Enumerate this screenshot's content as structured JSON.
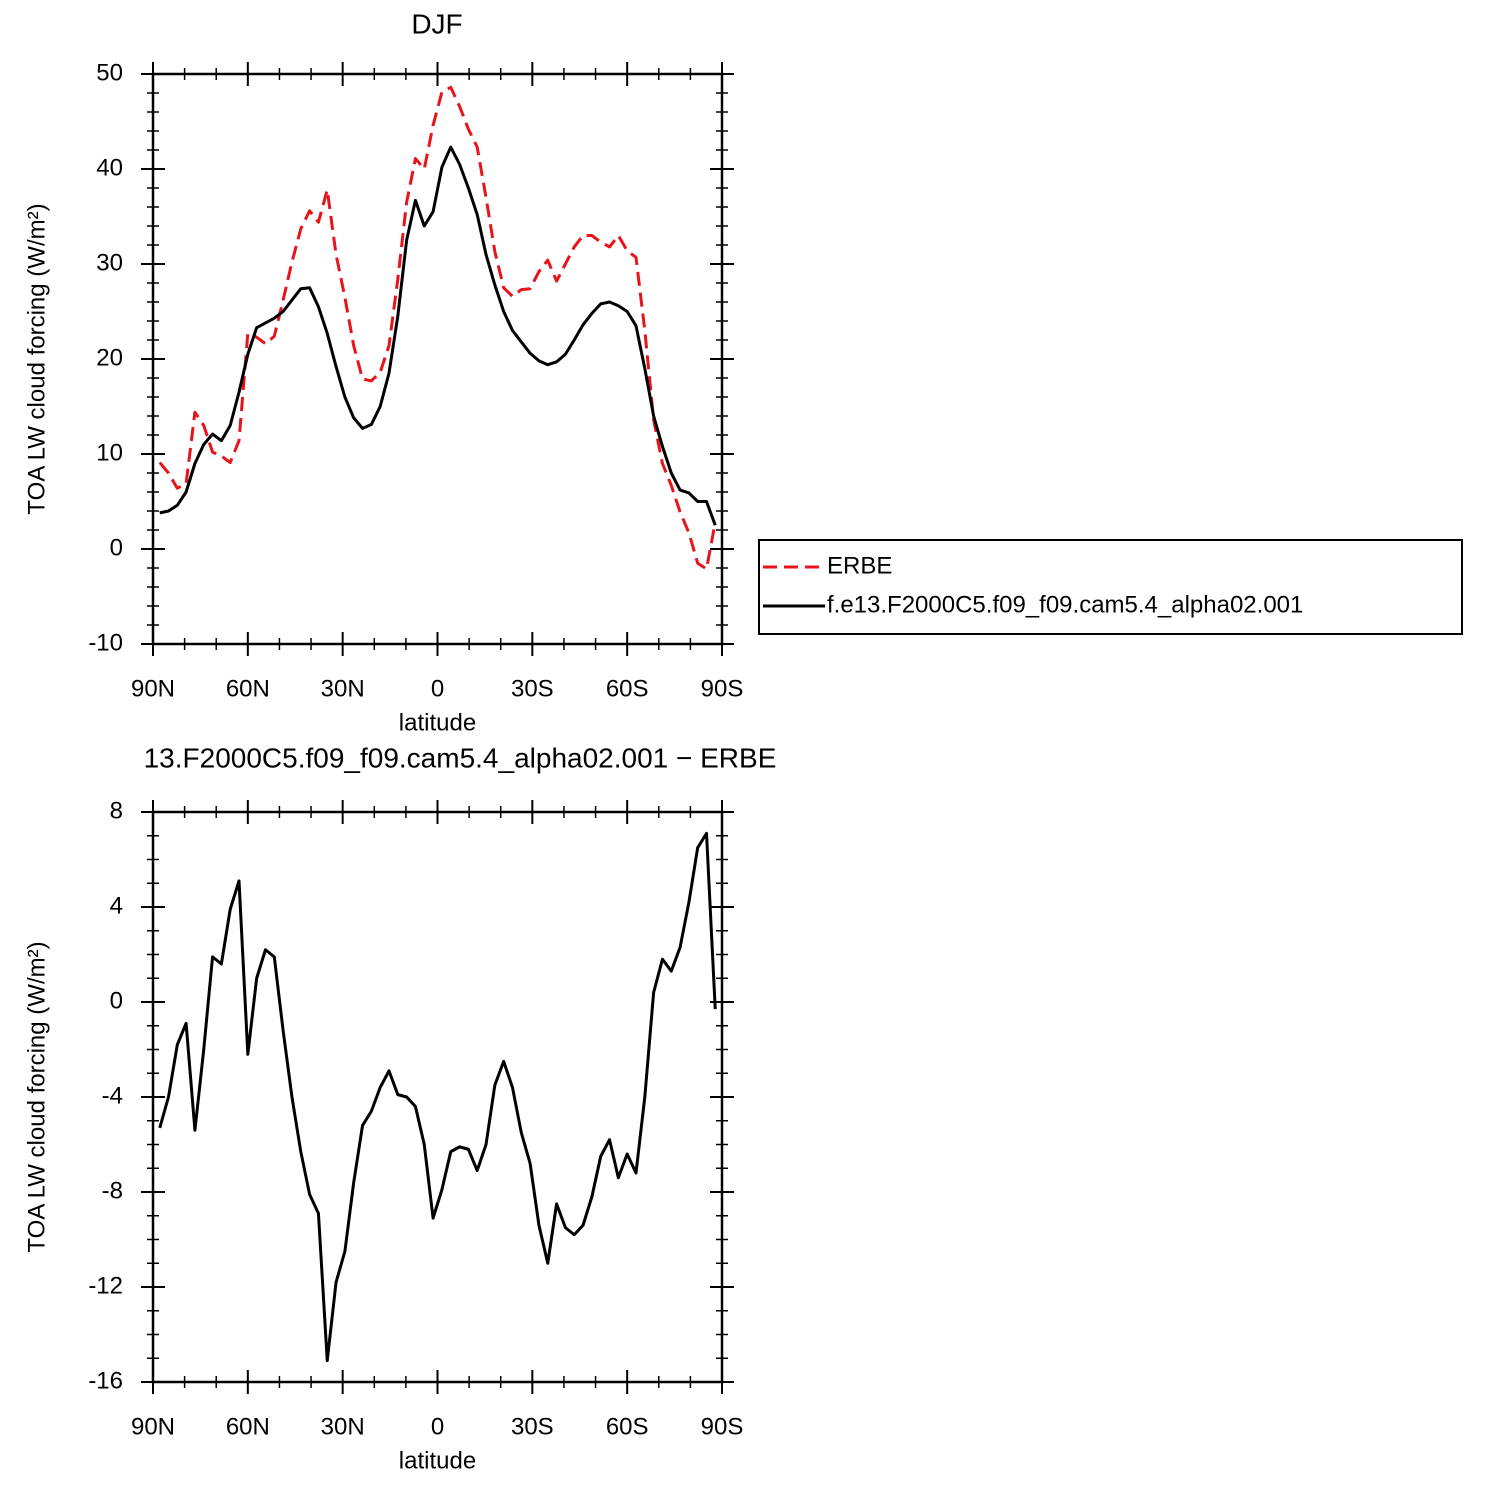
{
  "chart_data": [
    {
      "type": "line",
      "title": "DJF",
      "xlabel": "latitude",
      "ylabel": "TOA LW cloud forcing (W/m²)",
      "x": [
        87.86,
        85.1,
        82.31,
        79.53,
        76.74,
        73.95,
        71.16,
        68.37,
        65.58,
        62.79,
        60,
        57.21,
        54.42,
        51.63,
        48.84,
        46.04,
        43.25,
        40.46,
        37.67,
        34.88,
        32.09,
        29.3,
        26.51,
        23.72,
        20.93,
        18.14,
        15.35,
        12.56,
        9.77,
        6.98,
        4.19,
        1.4,
        -1.4,
        -4.19,
        -6.98,
        -9.77,
        -12.56,
        -15.35,
        -18.14,
        -20.93,
        -23.72,
        -26.51,
        -29.3,
        -32.09,
        -34.88,
        -37.67,
        -40.46,
        -43.25,
        -46.04,
        -48.84,
        -51.63,
        -54.42,
        -57.21,
        -60,
        -62.79,
        -65.58,
        -68.37,
        -71.16,
        -73.95,
        -76.74,
        -79.53,
        -82.31,
        -85.1,
        -87.86
      ],
      "series": [
        {
          "name": "ERBE",
          "color": "#e8141b",
          "dashed": true,
          "values": [
            9.1,
            8.0,
            6.4,
            6.9,
            14.4,
            13.0,
            10.2,
            9.8,
            9.1,
            11.4,
            22.7,
            22.3,
            21.6,
            22.4,
            26.2,
            30.2,
            33.7,
            35.6,
            34.4,
            37.8,
            31.0,
            26.5,
            21.4,
            17.9,
            17.7,
            18.6,
            21.4,
            28.4,
            36.5,
            41.1,
            40.0,
            44.6,
            48.1,
            48.6,
            46.6,
            44.2,
            42.3,
            37.0,
            31.3,
            27.5,
            26.6,
            27.3,
            27.4,
            29.2,
            30.4,
            28.2,
            30.0,
            31.8,
            33.0,
            33.0,
            32.3,
            31.8,
            33.0,
            31.4,
            30.7,
            23.0,
            13.6,
            9.0,
            6.7,
            3.9,
            1.7,
            -1.5,
            -2.1,
            2.8
          ]
        },
        {
          "name": "f.e13.F2000C5.f09_f09.cam5.4_alpha02.001",
          "color": "#000000",
          "dashed": false,
          "values": [
            3.8,
            4.0,
            4.6,
            6.0,
            9.0,
            11.0,
            12.1,
            11.4,
            13.0,
            16.5,
            20.5,
            23.3,
            23.8,
            24.3,
            25.0,
            26.2,
            27.4,
            27.5,
            25.5,
            22.7,
            19.2,
            16.0,
            13.8,
            12.7,
            13.1,
            15.0,
            18.5,
            24.5,
            32.5,
            36.7,
            34.0,
            35.5,
            40.2,
            42.3,
            40.5,
            38.0,
            35.2,
            31.0,
            27.8,
            25.0,
            23.0,
            21.8,
            20.6,
            19.8,
            19.4,
            19.7,
            20.5,
            22.0,
            23.6,
            24.8,
            25.8,
            26.0,
            25.6,
            25.0,
            23.5,
            19.0,
            14.0,
            10.8,
            8.0,
            6.2,
            5.9,
            5.0,
            5.0,
            2.5
          ]
        }
      ],
      "xlim": [
        90,
        -90
      ],
      "xticks": [
        {
          "value": 90,
          "label": "90N"
        },
        {
          "value": 60,
          "label": "60N"
        },
        {
          "value": 30,
          "label": "30N"
        },
        0,
        {
          "value": -30,
          "label": "30S"
        },
        {
          "value": -60,
          "label": "60S"
        },
        {
          "value": -90,
          "label": "90S"
        }
      ],
      "xminorticks": [
        80,
        70,
        50,
        40,
        20,
        10,
        -10,
        -20,
        -40,
        -50,
        -70,
        -80
      ],
      "ylim": [
        -10,
        50
      ],
      "yticks": [
        -10,
        0,
        10,
        20,
        30,
        40,
        50
      ],
      "yminorticks": [
        -8,
        -6,
        -4,
        -2,
        2,
        4,
        6,
        8,
        12,
        14,
        16,
        18,
        22,
        24,
        26,
        28,
        32,
        34,
        36,
        38,
        42,
        44,
        46,
        48
      ],
      "legend": "outside-right"
    },
    {
      "type": "line",
      "title": "13.F2000C5.f09_f09.cam5.4_alpha02.001 − ERBE",
      "xlabel": "latitude",
      "ylabel": "TOA LW cloud forcing (W/m²)",
      "x": [
        87.86,
        85.1,
        82.31,
        79.53,
        76.74,
        73.95,
        71.16,
        68.37,
        65.58,
        62.79,
        60,
        57.21,
        54.42,
        51.63,
        48.84,
        46.04,
        43.25,
        40.46,
        37.67,
        34.88,
        32.09,
        29.3,
        26.51,
        23.72,
        20.93,
        18.14,
        15.35,
        12.56,
        9.77,
        6.98,
        4.19,
        1.4,
        -1.4,
        -4.19,
        -6.98,
        -9.77,
        -12.56,
        -15.35,
        -18.14,
        -20.93,
        -23.72,
        -26.51,
        -29.3,
        -32.09,
        -34.88,
        -37.67,
        -40.46,
        -43.25,
        -46.04,
        -48.84,
        -51.63,
        -54.42,
        -57.21,
        -60,
        -62.79,
        -65.58,
        -68.37,
        -71.16,
        -73.95,
        -76.74,
        -79.53,
        -82.31,
        -85.1,
        -87.86
      ],
      "color": "#000000",
      "values": [
        -5.3,
        -4,
        -1.8,
        -0.9,
        -5.4,
        -2,
        1.9,
        1.6,
        3.9,
        5.1,
        -2.2,
        1.0,
        2.2,
        1.9,
        -1.2,
        -4,
        -6.3,
        -8.1,
        -8.9,
        -15.1,
        -11.8,
        -10.5,
        -7.6,
        -5.2,
        -4.6,
        -3.6,
        -2.9,
        -3.9,
        -4,
        -4.4,
        -6,
        -9.1,
        -7.9,
        -6.3,
        -6.1,
        -6.2,
        -7.1,
        -6,
        -3.5,
        -2.5,
        -3.6,
        -5.5,
        -6.8,
        -9.4,
        -11,
        -8.5,
        -9.5,
        -9.8,
        -9.4,
        -8.2,
        -6.5,
        -5.8,
        -7.4,
        -6.4,
        -7.2,
        -4,
        0.4,
        1.8,
        1.3,
        2.3,
        4.2,
        6.5,
        7.1,
        -0.3
      ],
      "xlim": [
        90,
        -90
      ],
      "xticks": [
        {
          "value": 90,
          "label": "90N"
        },
        {
          "value": 60,
          "label": "60N"
        },
        {
          "value": 30,
          "label": "30N"
        },
        0,
        {
          "value": -30,
          "label": "30S"
        },
        {
          "value": -60,
          "label": "60S"
        },
        {
          "value": -90,
          "label": "90S"
        }
      ],
      "xminorticks": [
        80,
        70,
        50,
        40,
        20,
        10,
        -10,
        -20,
        -40,
        -50,
        -70,
        -80
      ],
      "ylim": [
        -16,
        8
      ],
      "yticks": [
        -16,
        -12,
        -8,
        -4,
        0,
        4,
        8
      ],
      "yminorticks": [
        -15,
        -14,
        -13,
        -11,
        -10,
        -9,
        -7,
        -6,
        -5,
        -3,
        -2,
        -1,
        1,
        2,
        3,
        5,
        6,
        7
      ]
    }
  ]
}
